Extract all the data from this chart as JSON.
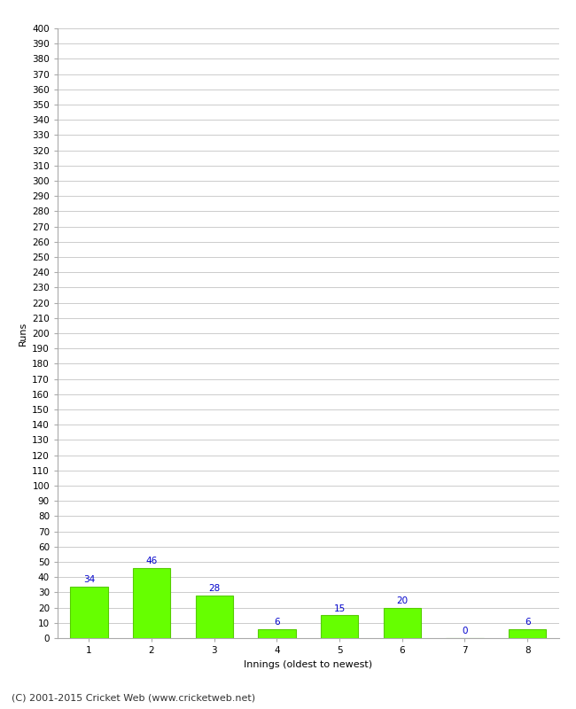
{
  "categories": [
    "1",
    "2",
    "3",
    "4",
    "5",
    "6",
    "7",
    "8"
  ],
  "values": [
    34,
    46,
    28,
    6,
    15,
    20,
    0,
    6
  ],
  "bar_color": "#66ff00",
  "bar_edge_color": "#55cc00",
  "label_color": "#0000cc",
  "xlabel": "Innings (oldest to newest)",
  "ylabel": "Runs",
  "ylim": [
    0,
    400
  ],
  "yticks": [
    0,
    10,
    20,
    30,
    40,
    50,
    60,
    70,
    80,
    90,
    100,
    110,
    120,
    130,
    140,
    150,
    160,
    170,
    180,
    190,
    200,
    210,
    220,
    230,
    240,
    250,
    260,
    270,
    280,
    290,
    300,
    310,
    320,
    330,
    340,
    350,
    360,
    370,
    380,
    390,
    400
  ],
  "footer": "(C) 2001-2015 Cricket Web (www.cricketweb.net)",
  "background_color": "#ffffff",
  "grid_color": "#cccccc",
  "label_fontsize": 7.5,
  "axis_tick_fontsize": 7.5,
  "axis_label_fontsize": 8,
  "footer_fontsize": 8
}
